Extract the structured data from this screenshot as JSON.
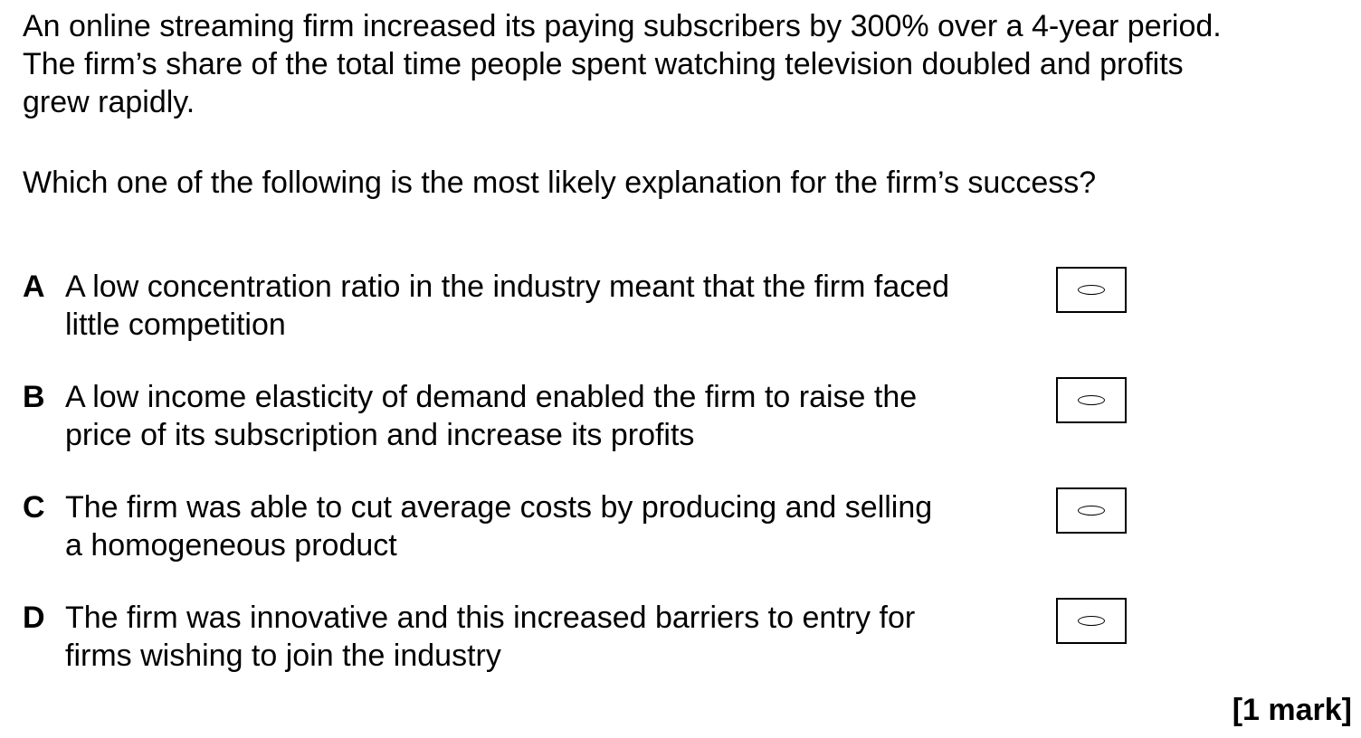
{
  "stem": {
    "lines": [
      "An online streaming firm increased its paying subscribers by 300% over a 4-year period.",
      "The firm’s share of the total time people spent watching television doubled and profits",
      "grew rapidly."
    ]
  },
  "question": "Which one of the following is the most likely explanation for the firm’s success?",
  "options": [
    {
      "letter": "A",
      "lines": [
        "A low concentration ratio in the industry meant that the firm faced",
        "little competition"
      ]
    },
    {
      "letter": "B",
      "lines": [
        "A low income elasticity of demand enabled the firm to raise the",
        "price of its subscription and increase its profits"
      ]
    },
    {
      "letter": "C",
      "lines": [
        "The firm was able to cut average costs by producing and selling",
        "a homogeneous product"
      ]
    },
    {
      "letter": "D",
      "lines": [
        "The firm was innovative and this increased barriers to entry for",
        "firms wishing to join the industry"
      ]
    }
  ],
  "marks": "[1 mark]"
}
